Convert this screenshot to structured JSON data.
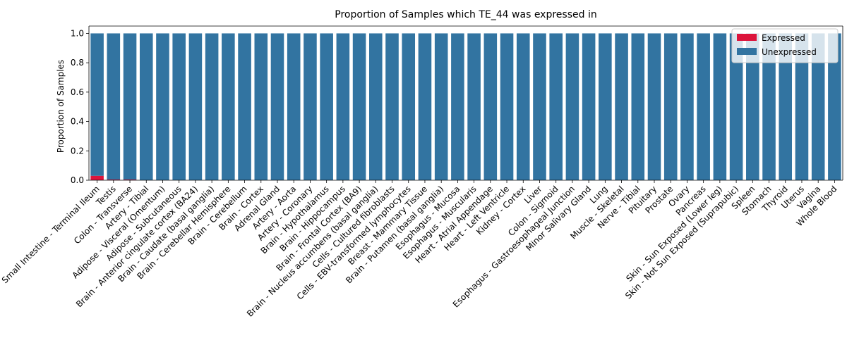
{
  "chart_data": {
    "type": "bar",
    "stacked": true,
    "title": "Proportion of Samples which TE_44 was expressed in",
    "xlabel": "",
    "ylabel": "Proportion of Samples",
    "ylim": [
      0,
      1.05
    ],
    "yticks": [
      "0.0",
      "0.2",
      "0.4",
      "0.6",
      "0.8",
      "1.0"
    ],
    "grid": false,
    "legend_position": "top-right",
    "categories": [
      "Small Intestine - Terminal Ileum",
      "Testis",
      "Colon - Transverse",
      "Artery - Tibial",
      "Adipose - Visceral (Omentum)",
      "Adipose - Subcutaneous",
      "Brain - Anterior cingulate cortex (BA24)",
      "Brain - Caudate (basal ganglia)",
      "Brain - Cerebellar Hemisphere",
      "Brain - Cerebellum",
      "Brain - Cortex",
      "Adrenal Gland",
      "Artery - Aorta",
      "Artery - Coronary",
      "Brain - Hypothalamus",
      "Brain - Hippocampus",
      "Brain - Frontal Cortex (BA9)",
      "Brain - Nucleus accumbens (basal ganglia)",
      "Cells - Cultured fibroblasts",
      "Cells - EBV-transformed lymphocytes",
      "Breast - Mammary Tissue",
      "Brain - Putamen (basal ganglia)",
      "Esophagus - Mucosa",
      "Esophagus - Muscularis",
      "Heart - Atrial Appendage",
      "Heart - Left Ventricle",
      "Kidney - Cortex",
      "Liver",
      "Colon - Sigmoid",
      "Esophagus - Gastroesophageal Junction",
      "Minor Salivary Gland",
      "Lung",
      "Muscle - Skeletal",
      "Nerve - Tibial",
      "Pituitary",
      "Prostate",
      "Ovary",
      "Pancreas",
      "Skin - Sun Exposed (Lower leg)",
      "Skin - Not Sun Exposed (Suprapubic)",
      "Spleen",
      "Stomach",
      "Thyroid",
      "Uterus",
      "Vagina",
      "Whole Blood"
    ],
    "series": [
      {
        "name": "Expressed",
        "color": "#dc143c",
        "values": [
          0.03,
          0.005,
          0.005,
          0,
          0,
          0,
          0,
          0,
          0,
          0,
          0,
          0,
          0,
          0,
          0,
          0,
          0,
          0,
          0,
          0,
          0,
          0,
          0,
          0,
          0,
          0,
          0,
          0,
          0,
          0,
          0,
          0,
          0,
          0,
          0,
          0,
          0,
          0,
          0,
          0,
          0,
          0,
          0,
          0,
          0,
          0
        ]
      },
      {
        "name": "Unexpressed",
        "color": "#3274a1",
        "values": [
          0.97,
          0.995,
          0.995,
          1,
          1,
          1,
          1,
          1,
          1,
          1,
          1,
          1,
          1,
          1,
          1,
          1,
          1,
          1,
          1,
          1,
          1,
          1,
          1,
          1,
          1,
          1,
          1,
          1,
          1,
          1,
          1,
          1,
          1,
          1,
          1,
          1,
          1,
          1,
          1,
          1,
          1,
          1,
          1,
          1,
          1,
          1
        ]
      }
    ]
  }
}
